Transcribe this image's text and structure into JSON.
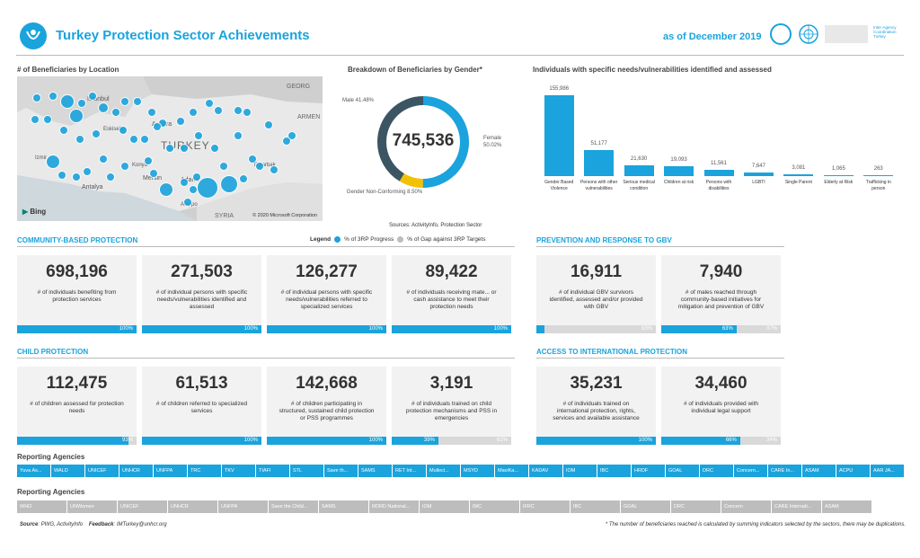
{
  "header": {
    "title": "Turkey Protection Sector Achievements",
    "date": "as of December 2019",
    "partner_text": "Inter-Agency\nCoordination\nTurkey"
  },
  "map": {
    "title": "# of Beneficiaries by Location",
    "copyright": "© 2020 Microsoft Corporation",
    "bing": "Bing",
    "labels": [
      "Istanbul",
      "Ankara",
      "TURKEY",
      "Antalya",
      "Mersin",
      "Adana",
      "Aleppo",
      "SYRIA",
      "GEORG",
      "ARMEN",
      "Diyarbak",
      "Izmir",
      "Eskisehir",
      "Konya"
    ]
  },
  "gender": {
    "title": "Breakdown of Beneficiaries by Gender*",
    "total": "745,536",
    "male": "Male 41.48%",
    "female": "Female 50.02%",
    "nonconf": "Gender Non-Conforming 8.50%",
    "sources": "Sources: ActivityInfo, Protection Sector",
    "legend_label": "Legend",
    "legend_progress": "% of 3RP Progress",
    "legend_gap": "% of Gap against 3RP Targets"
  },
  "chart_data": {
    "type": "bar",
    "title": "Individuals with specific needs/vulnerabilities identified and assessed",
    "categories": [
      "Gender Based Violence",
      "Persons with other vulnerabilities",
      "Serious medical condition",
      "Children at risk",
      "Persons with disabilities",
      "LGBTI",
      "Single Parent",
      "Elderly at Risk",
      "Trafficking in person"
    ],
    "values": [
      155986,
      51177,
      21630,
      19093,
      11561,
      7647,
      3081,
      1065,
      263
    ],
    "value_labels": [
      "155,986",
      "51,177",
      "21,630",
      "19,093",
      "11,561",
      "7,647",
      "3,081",
      "1,065",
      "263"
    ],
    "ylim": [
      0,
      160000
    ],
    "colors": [
      "#1aa3dc"
    ]
  },
  "cbp": {
    "title": "COMMUNITY-BASED PROTECTION",
    "cards": [
      {
        "num": "698,196",
        "desc": "# of individuals benefiting from protection services",
        "pct": "100%",
        "gap": ""
      },
      {
        "num": "271,503",
        "desc": "# of individual persons with specific needs/vulnerabilities identified and assessed",
        "pct": "100%",
        "gap": ""
      },
      {
        "num": "126,277",
        "desc": "# of individual persons with specific needs/vulnerabilities referred to specialized services",
        "pct": "100%",
        "gap": ""
      },
      {
        "num": "89,422",
        "desc": "# of individuals receiving mate... or cash assistance to meet their protection needs",
        "pct": "100%",
        "gap": ""
      }
    ]
  },
  "gbv": {
    "title": "PREVENTION AND RESPONSE TO GBV",
    "cards": [
      {
        "num": "16,911",
        "desc": "# of individual GBV survivors identified, assessed and/or provided with GBV",
        "pct": "",
        "gap": "93%"
      },
      {
        "num": "7,940",
        "desc": "# of males reached through community-based initiatives for mitigation and prevention of GBV",
        "pct": "63%",
        "gap": "37%"
      }
    ]
  },
  "cp": {
    "title": "CHILD PROTECTION",
    "cards": [
      {
        "num": "112,475",
        "desc": "# of children assessed for protection needs",
        "pct": "93%",
        "gap": ""
      },
      {
        "num": "61,513",
        "desc": "# of children referred to specialized services",
        "pct": "100%",
        "gap": ""
      },
      {
        "num": "142,668",
        "desc": "# of children participating in structured, sustained child protection or PSS programmes",
        "pct": "100%",
        "gap": ""
      },
      {
        "num": "3,191",
        "desc": "# of individuals trained on child protection mechanisms and PSS in emergencies",
        "pct": "39%",
        "gap": "61%"
      }
    ]
  },
  "aip": {
    "title": "ACCESS TO INTERNATIONAL PROTECTION",
    "cards": [
      {
        "num": "35,231",
        "desc": "# of individuals trained on international protection, rights, services and available assistance",
        "pct": "100%",
        "gap": ""
      },
      {
        "num": "34,460",
        "desc": "# of individuals provided with individual legal support",
        "pct": "66%",
        "gap": "34%"
      }
    ]
  },
  "agencies": {
    "title1": "Reporting Agencies",
    "row1": [
      "Yuva As...",
      "WALD",
      "UNICEF",
      "UNHCR",
      "UNFPA",
      "TRC",
      "TKV",
      "TIAFI",
      "STL",
      "Save th...",
      "SAMS",
      "RET Int...",
      "Mulleci...",
      "MSYD",
      "MaviKa...",
      "KADAV",
      "IOM",
      "IBC",
      "HRDF",
      "GOAL",
      "DRC",
      "Concern...",
      "CARE In...",
      "ASAM",
      "ACPU",
      "AAR JA..."
    ],
    "title2": "Reporting Agencies",
    "row2": [
      "WHO",
      "UNWomen",
      "UNICEF",
      "UNHCR",
      "UNFPA",
      "Save the Child...",
      "SAMS",
      "RDRD National...",
      "IOM",
      "IMC",
      "IFRC",
      "IBC",
      "GOAL",
      "DRC",
      "Concern",
      "CARE Internati...",
      "ASAM"
    ]
  },
  "footer": {
    "source_label": "Source",
    "source": ": PWG, ActivityInfo",
    "feedback_label": "Feedback",
    "feedback": ": IMTurkey@unhcr.org",
    "note": "* The number of beneficiaries reached is calculated by summing indicators selected by the sectors, there may be duplications."
  }
}
